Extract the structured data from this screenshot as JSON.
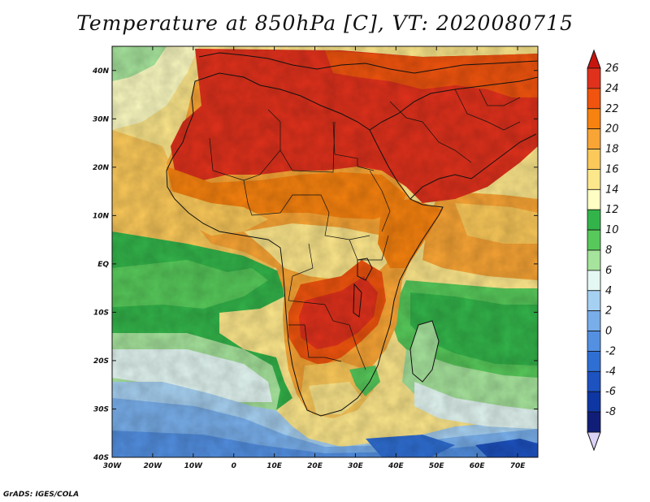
{
  "title": "Temperature at 850hPa [C], VT: 2020080715",
  "credit": "GrADS: IGES/COLA",
  "map": {
    "lon_range": [
      -30,
      75
    ],
    "lat_range": [
      -40,
      45
    ],
    "lon_ticks": [
      {
        "value": -30,
        "label": "30W"
      },
      {
        "value": -20,
        "label": "20W"
      },
      {
        "value": -10,
        "label": "10W"
      },
      {
        "value": 0,
        "label": "0"
      },
      {
        "value": 10,
        "label": "10E"
      },
      {
        "value": 20,
        "label": "20E"
      },
      {
        "value": 30,
        "label": "30E"
      },
      {
        "value": 40,
        "label": "40E"
      },
      {
        "value": 50,
        "label": "50E"
      },
      {
        "value": 60,
        "label": "60E"
      },
      {
        "value": 70,
        "label": "70E"
      }
    ],
    "lat_ticks": [
      {
        "value": 40,
        "label": "40N"
      },
      {
        "value": 30,
        "label": "30N"
      },
      {
        "value": 20,
        "label": "20N"
      },
      {
        "value": 10,
        "label": "10N"
      },
      {
        "value": 0,
        "label": "EQ"
      },
      {
        "value": -10,
        "label": "10S"
      },
      {
        "value": -20,
        "label": "20S"
      },
      {
        "value": -30,
        "label": "30S"
      },
      {
        "value": -40,
        "label": "40S"
      }
    ]
  },
  "colorbar": {
    "labels": [
      "26",
      "24",
      "22",
      "20",
      "18",
      "16",
      "14",
      "12",
      "10",
      "8",
      "6",
      "4",
      "2",
      "0",
      "-2",
      "-4",
      "-6",
      "-8"
    ],
    "colors": [
      "#e0311c",
      "#f0540e",
      "#f7820f",
      "#f9a535",
      "#fbc95a",
      "#fde78b",
      "#fefdc3",
      "#33b44a",
      "#57c95a",
      "#a6e39c",
      "#e4f7f3",
      "#a6d0f1",
      "#78aeea",
      "#5390e2",
      "#2f6fd4",
      "#1d52c1",
      "#0e37a4",
      "#111e78"
    ],
    "top_arrow_color": "#c8140f",
    "bottom_arrow_color": "#dcd2f6"
  }
}
